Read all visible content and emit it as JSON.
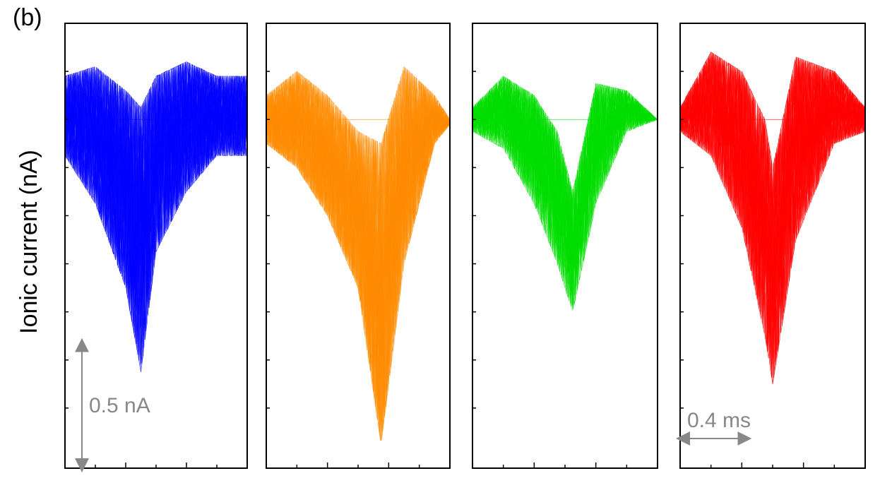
{
  "figure": {
    "panel_label": "(b)",
    "ylabel": "Ionic current (nA)"
  },
  "chart_data": [
    {
      "type": "line",
      "color": "#0000ff",
      "x_ms": [
        0.0,
        0.2,
        0.4,
        0.5,
        0.6,
        0.8,
        1.0,
        1.2
      ],
      "y_nA_center": [
        0.0,
        -0.05,
        -0.25,
        -0.35,
        -0.15,
        -0.05,
        0.0,
        0.0
      ],
      "envelope_upper_nA": [
        0.18,
        0.22,
        0.12,
        0.05,
        0.18,
        0.24,
        0.18,
        0.18
      ],
      "envelope_lower_nA": [
        -0.15,
        -0.35,
        -0.7,
        -1.05,
        -0.55,
        -0.3,
        -0.15,
        -0.15
      ],
      "baseline_nA": 0.0,
      "scale_bar": {
        "label": "0.5 nA",
        "direction": "vertical",
        "value_nA": 0.5
      }
    },
    {
      "type": "line",
      "color": "#ff8c00",
      "x_ms": [
        0.0,
        0.2,
        0.4,
        0.6,
        0.75,
        0.9,
        1.1,
        1.2
      ],
      "y_nA_center": [
        0.0,
        0.0,
        -0.15,
        -0.35,
        -0.45,
        -0.15,
        0.0,
        0.0
      ],
      "envelope_upper_nA": [
        0.1,
        0.2,
        0.1,
        -0.05,
        -0.1,
        0.22,
        0.1,
        0.0
      ],
      "envelope_lower_nA": [
        -0.1,
        -0.2,
        -0.4,
        -0.7,
        -1.35,
        -0.6,
        -0.1,
        -0.02
      ],
      "baseline_nA": 0.0
    },
    {
      "type": "line",
      "color": "#00dd00",
      "x_ms": [
        0.0,
        0.2,
        0.4,
        0.55,
        0.65,
        0.8,
        1.0,
        1.2
      ],
      "y_nA_center": [
        0.0,
        0.0,
        -0.1,
        -0.25,
        -0.45,
        -0.1,
        0.0,
        0.0
      ],
      "envelope_upper_nA": [
        0.05,
        0.18,
        0.1,
        -0.05,
        -0.3,
        0.15,
        0.12,
        0.0
      ],
      "envelope_lower_nA": [
        -0.05,
        -0.12,
        -0.35,
        -0.6,
        -0.8,
        -0.35,
        -0.05,
        0.0
      ],
      "baseline_nA": 0.0
    },
    {
      "type": "line",
      "color": "#ff0000",
      "x_ms": [
        0.0,
        0.2,
        0.4,
        0.55,
        0.6,
        0.75,
        1.0,
        1.2
      ],
      "y_nA_center": [
        0.0,
        0.05,
        -0.1,
        -0.3,
        -0.5,
        -0.1,
        0.05,
        0.0
      ],
      "envelope_upper_nA": [
        0.05,
        0.28,
        0.2,
        0.0,
        -0.2,
        0.26,
        0.2,
        0.05
      ],
      "envelope_lower_nA": [
        -0.05,
        -0.15,
        -0.45,
        -0.9,
        -1.1,
        -0.5,
        -0.1,
        -0.05
      ],
      "baseline_nA": 0.0,
      "scale_bar": {
        "label": "0.4 ms",
        "direction": "horizontal",
        "value_ms": 0.4
      }
    }
  ]
}
